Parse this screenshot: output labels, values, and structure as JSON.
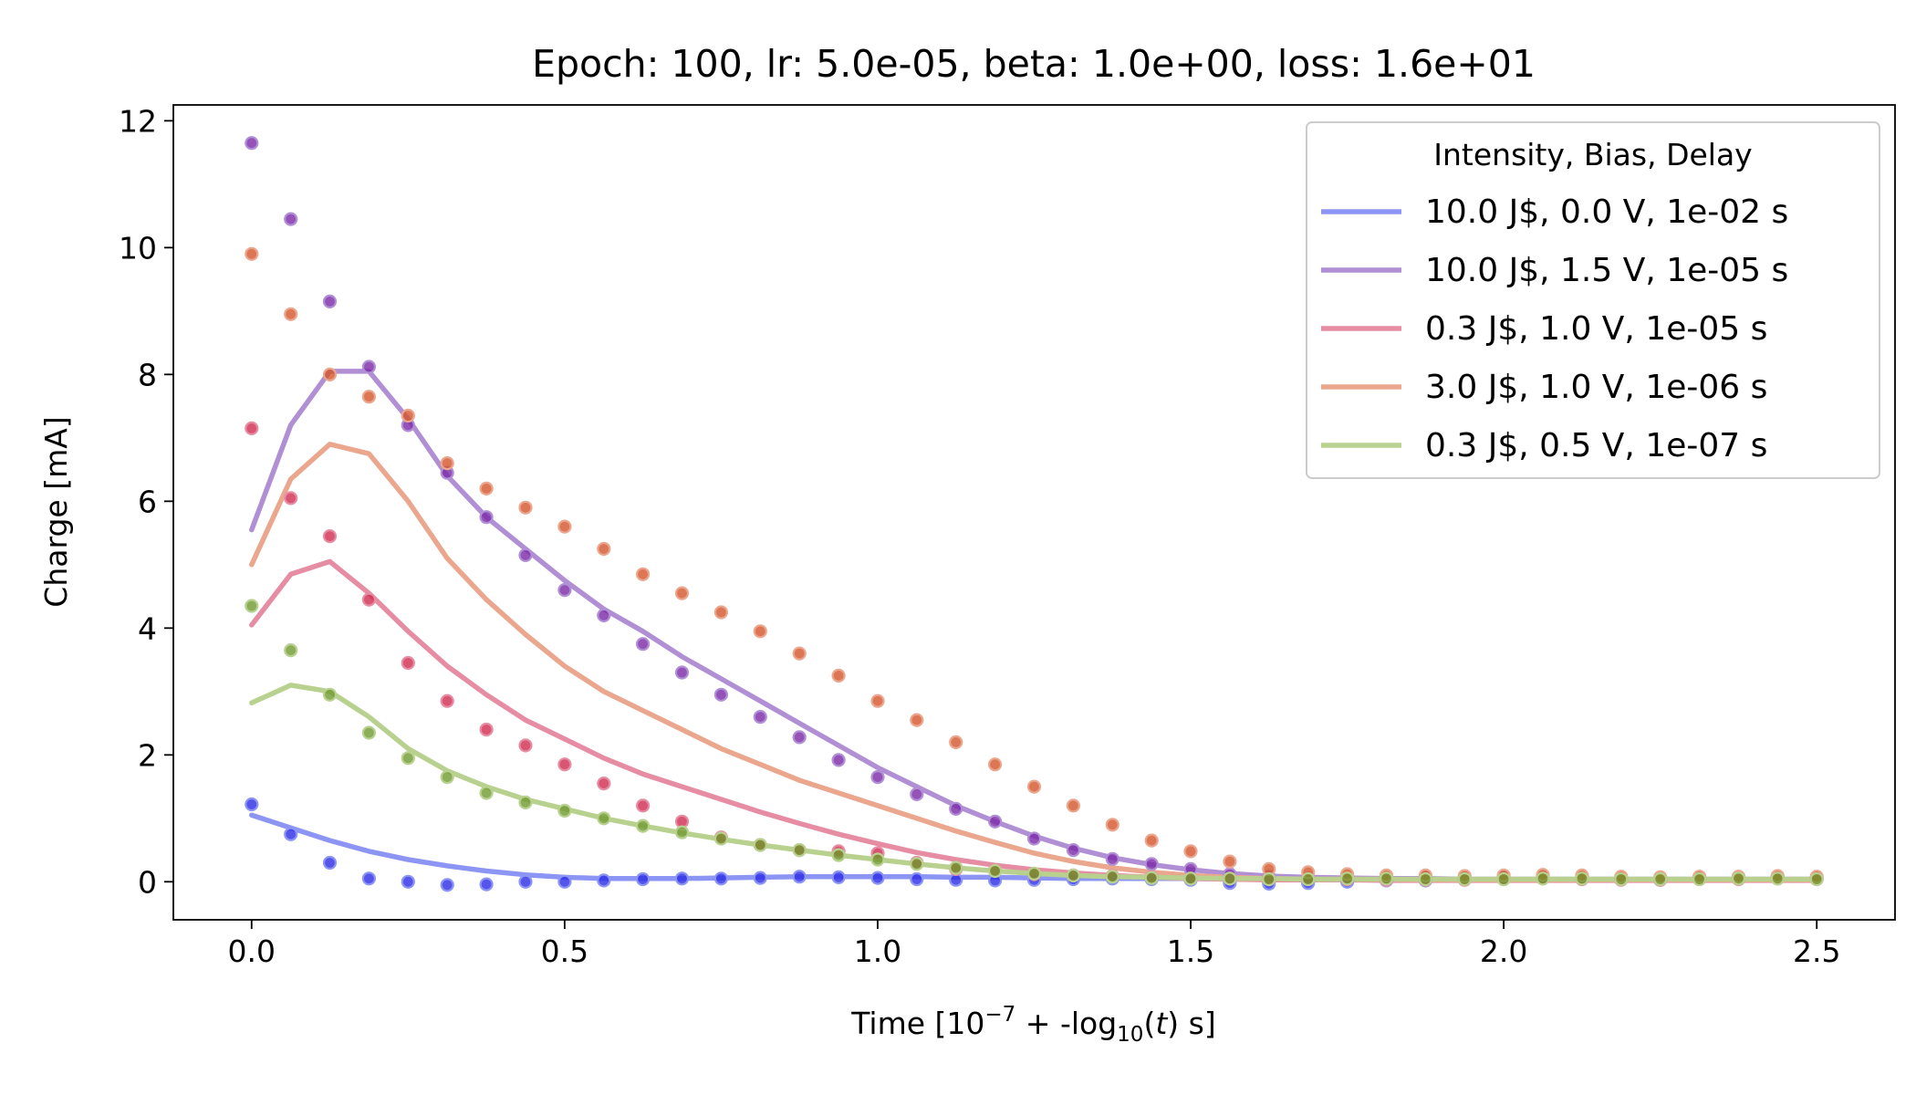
{
  "chart_data": {
    "type": "line",
    "title": "Epoch: 100, lr: 5.0e-05, beta: 1.0e+00, loss: 1.6e+01",
    "xlabel": "Time [10^-7 + -log10(t) s]",
    "xlabel_parts": {
      "a": "Time [10",
      "sup": "−7",
      "b": " + -log",
      "sub": "10",
      "c": "(",
      "italic": "t",
      "d": ") s]"
    },
    "ylabel": "Charge [mA]",
    "xlim": [
      -0.125,
      2.625
    ],
    "ylim": [
      -0.6,
      12.25
    ],
    "xticks": [
      0.0,
      0.5,
      1.0,
      1.5,
      2.0,
      2.5
    ],
    "xtick_labels": [
      "0.0",
      "0.5",
      "1.0",
      "1.5",
      "2.0",
      "2.5"
    ],
    "yticks": [
      0,
      2,
      4,
      6,
      8,
      10,
      12
    ],
    "ytick_labels": [
      "0",
      "2",
      "4",
      "6",
      "8",
      "10",
      "12"
    ],
    "grid": false,
    "legend": {
      "title": "Intensity, Bias, Delay",
      "placement": "top-right"
    },
    "x": [
      0.0,
      0.0625,
      0.125,
      0.1875,
      0.25,
      0.3125,
      0.375,
      0.4375,
      0.5,
      0.5625,
      0.625,
      0.6875,
      0.75,
      0.8125,
      0.875,
      0.9375,
      1.0,
      1.0625,
      1.125,
      1.1875,
      1.25,
      1.3125,
      1.375,
      1.4375,
      1.5,
      1.5625,
      1.625,
      1.6875,
      1.75,
      1.8125,
      1.875,
      1.9375,
      2.0,
      2.0625,
      2.125,
      2.1875,
      2.25,
      2.3125,
      2.375,
      2.4375,
      2.5
    ],
    "series": [
      {
        "name": "10.0 J$, 0.0 V, 1e-02 s",
        "line_color": "#8c95f3",
        "dot_color": "#2a2ae6",
        "fit": [
          1.05,
          0.85,
          0.65,
          0.48,
          0.35,
          0.25,
          0.17,
          0.11,
          0.07,
          0.05,
          0.05,
          0.05,
          0.06,
          0.07,
          0.08,
          0.08,
          0.08,
          0.08,
          0.07,
          0.07,
          0.06,
          0.05,
          0.05,
          0.05,
          0.05,
          0.04,
          0.04,
          0.04,
          0.04,
          0.04,
          0.04,
          0.03,
          0.03,
          0.03,
          0.03,
          0.03,
          0.03,
          0.03,
          0.03,
          0.03,
          0.03
        ],
        "data": [
          1.22,
          0.75,
          0.3,
          0.05,
          0.0,
          -0.05,
          -0.04,
          0.0,
          0.0,
          0.02,
          0.04,
          0.05,
          0.05,
          0.06,
          0.08,
          0.07,
          0.06,
          0.04,
          0.03,
          0.02,
          0.03,
          0.04,
          0.05,
          0.04,
          0.03,
          -0.02,
          -0.03,
          -0.02,
          0.0,
          0.02,
          0.02,
          0.04,
          0.06,
          0.06,
          0.05,
          0.04,
          0.03,
          0.05,
          0.07,
          0.08,
          0.05
        ]
      },
      {
        "name": "10.0 J$, 1.5 V, 1e-05 s",
        "line_color": "#b08fd4",
        "dot_color": "#7a28a8",
        "fit": [
          5.55,
          7.2,
          8.05,
          8.05,
          7.3,
          6.4,
          5.75,
          5.25,
          4.75,
          4.3,
          3.95,
          3.55,
          3.2,
          2.85,
          2.5,
          2.15,
          1.8,
          1.5,
          1.2,
          0.95,
          0.72,
          0.53,
          0.38,
          0.27,
          0.19,
          0.13,
          0.09,
          0.07,
          0.06,
          0.05,
          0.05,
          0.04,
          0.04,
          0.04,
          0.04,
          0.04,
          0.04,
          0.04,
          0.04,
          0.04,
          0.04
        ],
        "data": [
          11.65,
          10.45,
          9.15,
          8.12,
          7.2,
          6.45,
          5.75,
          5.15,
          4.6,
          4.2,
          3.75,
          3.3,
          2.95,
          2.6,
          2.28,
          1.92,
          1.65,
          1.38,
          1.15,
          0.95,
          0.68,
          0.5,
          0.36,
          0.28,
          0.2,
          0.12,
          0.08,
          0.05,
          0.04,
          0.05,
          0.06,
          0.05,
          0.05,
          0.06,
          0.05,
          0.04,
          0.04,
          0.05,
          0.06,
          0.07,
          0.06
        ]
      },
      {
        "name": "0.3 J$, 1.0 V, 1e-05 s",
        "line_color": "#e68da4",
        "dot_color": "#cf2a4e",
        "fit": [
          4.05,
          4.85,
          5.05,
          4.55,
          3.95,
          3.4,
          2.95,
          2.55,
          2.25,
          1.95,
          1.7,
          1.5,
          1.3,
          1.1,
          0.92,
          0.75,
          0.6,
          0.46,
          0.35,
          0.26,
          0.19,
          0.14,
          0.1,
          0.07,
          0.05,
          0.04,
          0.03,
          0.03,
          0.03,
          0.02,
          0.02,
          0.02,
          0.02,
          0.02,
          0.02,
          0.02,
          0.02,
          0.02,
          0.02,
          0.02,
          0.02
        ],
        "data": [
          7.15,
          6.05,
          5.45,
          4.45,
          3.45,
          2.85,
          2.4,
          2.15,
          1.85,
          1.55,
          1.2,
          0.95,
          0.7,
          0.58,
          0.5,
          0.48,
          0.45,
          0.3,
          0.2,
          0.18,
          0.12,
          0.1,
          0.09,
          0.07,
          0.05,
          0.05,
          0.04,
          0.04,
          0.04,
          0.03,
          0.03,
          0.03,
          0.04,
          0.05,
          0.04,
          0.03,
          0.03,
          0.04,
          0.04,
          0.05,
          0.04
        ]
      },
      {
        "name": "3.0 J$, 1.0 V, 1e-06 s",
        "line_color": "#eba68e",
        "dot_color": "#d4542a",
        "fit": [
          5.0,
          6.35,
          6.9,
          6.75,
          6.0,
          5.1,
          4.45,
          3.9,
          3.4,
          3.0,
          2.7,
          2.4,
          2.1,
          1.85,
          1.6,
          1.4,
          1.2,
          1.0,
          0.8,
          0.62,
          0.45,
          0.32,
          0.22,
          0.15,
          0.1,
          0.07,
          0.05,
          0.04,
          0.04,
          0.04,
          0.03,
          0.03,
          0.03,
          0.03,
          0.03,
          0.03,
          0.03,
          0.03,
          0.03,
          0.03,
          0.03
        ],
        "data": [
          9.9,
          8.95,
          8.0,
          7.65,
          7.35,
          6.6,
          6.2,
          5.9,
          5.6,
          5.25,
          4.85,
          4.55,
          4.25,
          3.95,
          3.6,
          3.25,
          2.85,
          2.55,
          2.2,
          1.85,
          1.5,
          1.2,
          0.9,
          0.65,
          0.48,
          0.32,
          0.2,
          0.15,
          0.12,
          0.1,
          0.1,
          0.09,
          0.1,
          0.11,
          0.1,
          0.08,
          0.07,
          0.08,
          0.08,
          0.09,
          0.08
        ]
      },
      {
        "name": "0.3 J$, 0.5 V, 1e-07 s",
        "line_color": "#b8d18f",
        "dot_color": "#6f9a2e",
        "fit": [
          2.82,
          3.1,
          3.0,
          2.6,
          2.1,
          1.75,
          1.5,
          1.3,
          1.15,
          1.0,
          0.88,
          0.77,
          0.67,
          0.58,
          0.5,
          0.42,
          0.35,
          0.28,
          0.22,
          0.17,
          0.13,
          0.1,
          0.08,
          0.07,
          0.06,
          0.05,
          0.05,
          0.04,
          0.04,
          0.04,
          0.04,
          0.04,
          0.04,
          0.04,
          0.04,
          0.04,
          0.04,
          0.04,
          0.04,
          0.04,
          0.04
        ],
        "data": [
          4.35,
          3.65,
          2.95,
          2.35,
          1.95,
          1.65,
          1.4,
          1.25,
          1.12,
          1.0,
          0.88,
          0.78,
          0.68,
          0.58,
          0.5,
          0.42,
          0.35,
          0.28,
          0.22,
          0.17,
          0.13,
          0.1,
          0.08,
          0.06,
          0.05,
          0.05,
          0.04,
          0.04,
          0.05,
          0.05,
          0.04,
          0.04,
          0.04,
          0.05,
          0.05,
          0.04,
          0.04,
          0.04,
          0.05,
          0.05,
          0.04
        ]
      }
    ]
  }
}
